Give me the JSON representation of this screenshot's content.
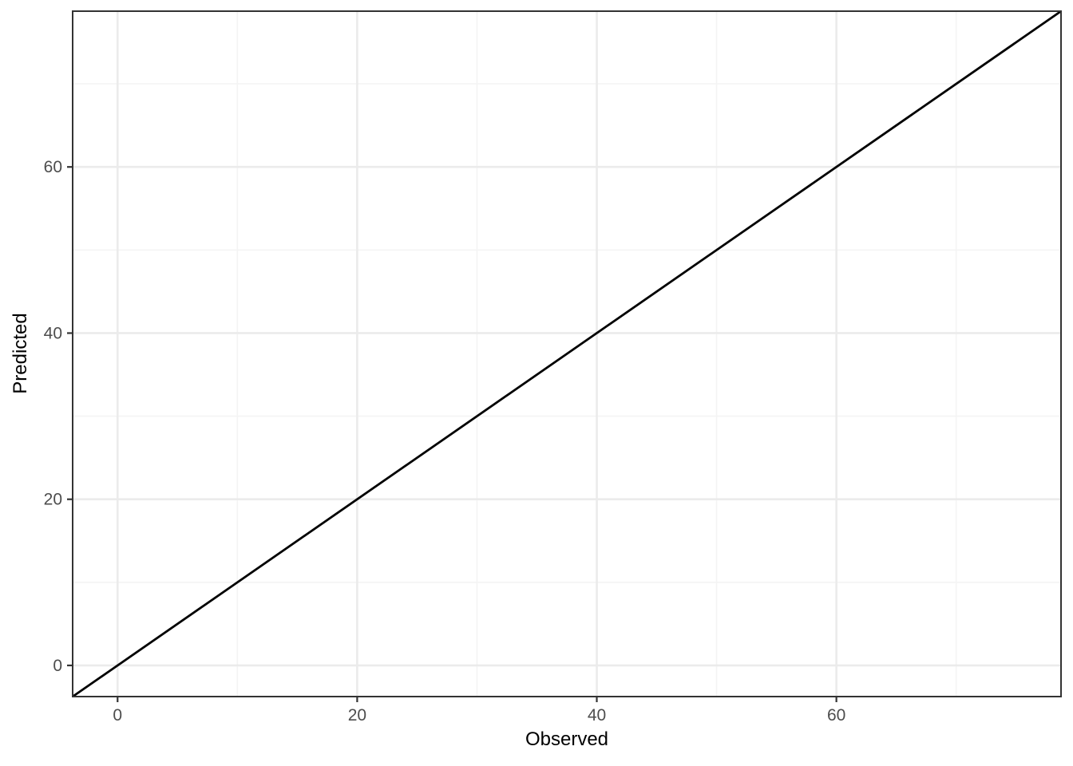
{
  "chart_data": {
    "type": "line",
    "title": "",
    "xlabel": "Observed",
    "ylabel": "Predicted",
    "xlim": [
      -3.75,
      78.75
    ],
    "ylim": [
      -3.75,
      78.75
    ],
    "x_major_ticks": [
      0,
      20,
      40,
      60
    ],
    "y_major_ticks": [
      0,
      20,
      40,
      60
    ],
    "x_minor_ticks": [
      10,
      30,
      50,
      70
    ],
    "y_minor_ticks": [
      10,
      30,
      50,
      70
    ],
    "grid": "major-and-minor",
    "legend_position": "none",
    "series": [
      {
        "name": "identity-line-y-equals-x",
        "type": "line",
        "x": [
          -3.75,
          78.75
        ],
        "y": [
          -3.75,
          78.75
        ]
      }
    ],
    "colors": {
      "panel_background": "#FFFFFF",
      "panel_border": "#333333",
      "grid_major": "#EBEBEB",
      "grid_minor": "#F4F4F4",
      "tick_mark": "#333333",
      "tick_label": "#4D4D4D",
      "axis_title": "#000000",
      "line": "#000000"
    }
  }
}
